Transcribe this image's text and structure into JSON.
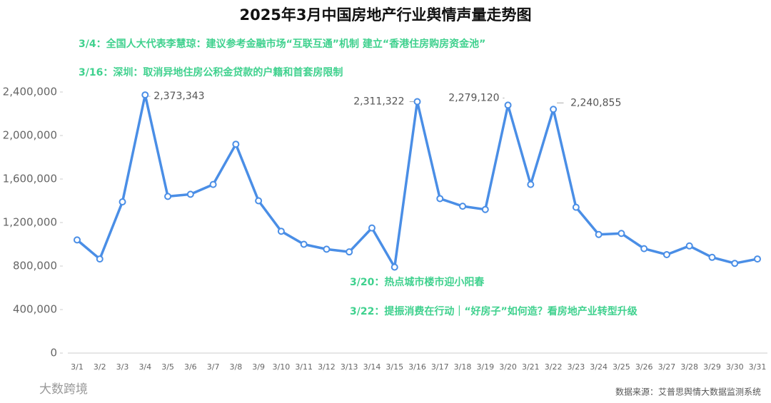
{
  "chart_data": {
    "type": "line",
    "title": "2025年3月中国房地产行业舆情声量走势图",
    "categories": [
      "3/1",
      "3/2",
      "3/3",
      "3/4",
      "3/5",
      "3/6",
      "3/7",
      "3/8",
      "3/9",
      "3/10",
      "3/11",
      "3/12",
      "3/13",
      "3/14",
      "3/15",
      "3/16",
      "3/17",
      "3/18",
      "3/19",
      "3/20",
      "3/21",
      "3/22",
      "3/23",
      "3/24",
      "3/25",
      "3/26",
      "3/27",
      "3/28",
      "3/29",
      "3/30",
      "3/31"
    ],
    "values": [
      1040000,
      865000,
      1390000,
      2373343,
      1440000,
      1460000,
      1550000,
      1920000,
      1400000,
      1120000,
      1000000,
      955000,
      930000,
      1150000,
      790000,
      2311322,
      1420000,
      1350000,
      1320000,
      2279120,
      1550000,
      2240855,
      1340000,
      1090000,
      1100000,
      960000,
      905000,
      985000,
      880000,
      825000,
      865000
    ],
    "value_labels": [
      null,
      null,
      null,
      "2,373,343",
      null,
      null,
      null,
      null,
      null,
      null,
      null,
      null,
      null,
      null,
      null,
      "2,311,322",
      null,
      null,
      null,
      "2,279,120",
      null,
      "2,240,855",
      null,
      null,
      null,
      null,
      null,
      null,
      null,
      null,
      null
    ],
    "color": "#4a8ee6",
    "ylim": [
      0,
      2400000
    ],
    "yticks": [
      0,
      {
        "value": 400000,
        "label": "400,000"
      },
      {
        "value": 800000,
        "label": "800,000"
      },
      {
        "value": 1200000,
        "label": "1,200,000"
      },
      {
        "value": 1600000,
        "label": "1,600,000"
      },
      {
        "value": 2000000,
        "label": "2,000,000"
      },
      {
        "value": 2400000,
        "label": "2,400,000"
      }
    ],
    "grid": false,
    "annotations": [
      "3/4：全国人大代表李慧琼：建议参考金融市场“互联互通”机制 建立“香港住房购房资金池”",
      "3/16：深圳：取消异地住房公积金贷款的户籍和首套房限制",
      "3/20：热点城市楼市迎小阳春",
      "3/22：提振消费在行动｜“好房子”如何造？看房地产业转型升级"
    ],
    "source": "数据来源：艾普思舆情大数据监测系统",
    "watermark": "大数跨境"
  }
}
